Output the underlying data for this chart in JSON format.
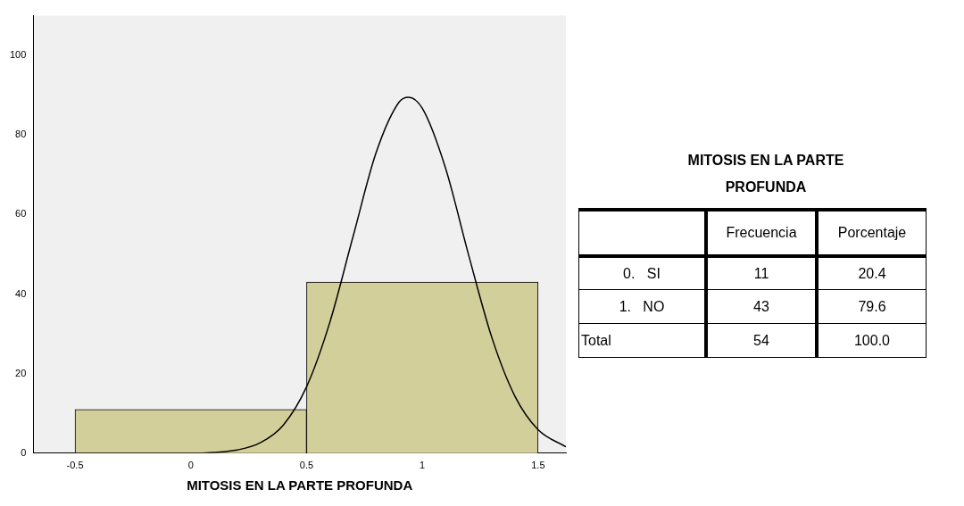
{
  "chart_data": [
    {
      "type": "histogram",
      "bins": [
        -0.5,
        0.5,
        1.5
      ],
      "values": [
        11,
        43
      ],
      "color": "#d3cf9a",
      "xlabel": "MITOSIS EN LA PARTE PROFUNDA",
      "xlim": [
        -0.68,
        1.62
      ],
      "xticks": [
        -0.5,
        0,
        0.5,
        1,
        1.5
      ],
      "ylim": [
        0,
        110
      ],
      "yticks": [
        0,
        20,
        40,
        60,
        80,
        100
      ],
      "series": [
        {
          "type": "line",
          "color": "#000000",
          "x": [
            -0.68,
            -0.2,
            0,
            0.1,
            0.2,
            0.3,
            0.4,
            0.5,
            0.6,
            0.7,
            0.8,
            0.9,
            0.94,
            1.0,
            1.1,
            1.2,
            1.3,
            1.4,
            1.5,
            1.62
          ],
          "values": [
            0,
            0,
            0,
            0.2,
            0.8,
            2.6,
            7.1,
            16.7,
            32.8,
            54.3,
            75.5,
            88.3,
            89.5,
            86.7,
            71.7,
            49.8,
            29.1,
            14.3,
            5.9,
            1.6
          ]
        }
      ]
    },
    {
      "type": "other",
      "title": "MITOSIS EN LA PARTE PROFUNDA",
      "categories": [
        "0.   SI",
        "1.   NO",
        "Total"
      ],
      "series": [
        {
          "name": "Frecuencia",
          "values": [
            11,
            43,
            54
          ],
          "value_labels": [
            "11",
            "43",
            "54"
          ]
        },
        {
          "name": "Porcentaje",
          "values": [
            20.4,
            79.6,
            100.0
          ],
          "value_labels": [
            "20.4",
            "79.6",
            "100.0"
          ]
        }
      ]
    }
  ]
}
